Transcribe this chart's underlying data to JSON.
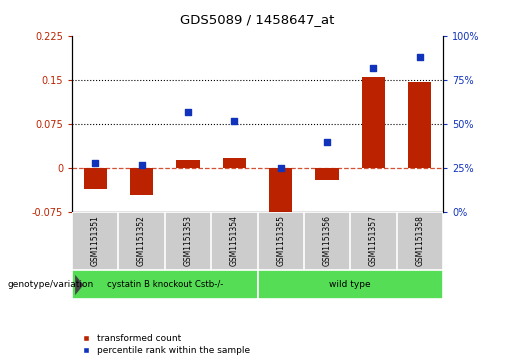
{
  "title": "GDS5089 / 1458647_at",
  "samples": [
    "GSM1151351",
    "GSM1151352",
    "GSM1151353",
    "GSM1151354",
    "GSM1151355",
    "GSM1151356",
    "GSM1151357",
    "GSM1151358"
  ],
  "red_values": [
    -0.035,
    -0.045,
    0.015,
    0.018,
    -0.095,
    -0.02,
    0.155,
    0.147
  ],
  "blue_values_pct": [
    28,
    27,
    57,
    52,
    25,
    40,
    82,
    88
  ],
  "ylim_left": [
    -0.075,
    0.225
  ],
  "ylim_right": [
    0,
    100
  ],
  "yticks_left": [
    -0.075,
    0,
    0.075,
    0.15,
    0.225
  ],
  "yticks_right": [
    0,
    25,
    50,
    75,
    100
  ],
  "hlines": [
    0.075,
    0.15
  ],
  "red_color": "#bb2200",
  "blue_color": "#1133bb",
  "bar_width": 0.5,
  "group1_label": "cystatin B knockout Cstb-/-",
  "group2_label": "wild type",
  "group1_indices": [
    0,
    1,
    2,
    3
  ],
  "group2_indices": [
    4,
    5,
    6,
    7
  ],
  "group_color": "#55dd55",
  "xlabel_label": "genotype/variation",
  "legend1": "transformed count",
  "legend2": "percentile rank within the sample",
  "bg_color": "#ffffff",
  "plot_bg": "#ffffff",
  "tick_color_left": "#bb2200",
  "tick_color_right": "#1133bb",
  "dashed_zero_color": "#cc3311",
  "label_bg": "#cccccc"
}
